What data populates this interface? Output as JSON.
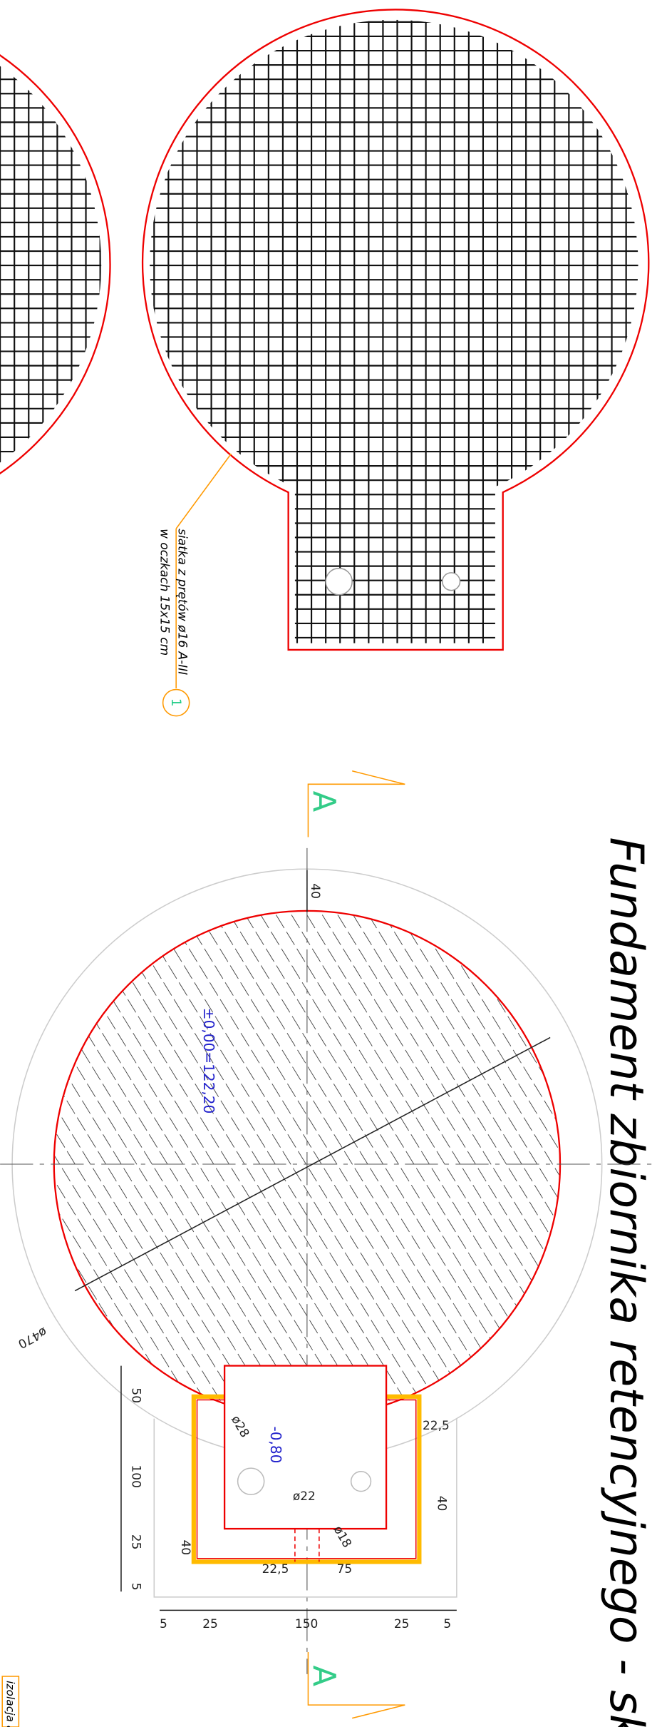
{
  "title": "Fundament zbiornika retencyjnego - skal",
  "mesh_note": {
    "line1": "siatka z prętów ø16 A-III",
    "line2": "w oczkach 15x15 cm",
    "marker": "1"
  },
  "section_marks": [
    "A",
    "A"
  ],
  "levels": [
    "±0,00=122,20",
    "-0,80"
  ],
  "diameters": [
    "ø470",
    "ø28",
    "ø22",
    "ø18"
  ],
  "dimensions": {
    "top_gap": "40",
    "left": [
      "50",
      "100",
      "25",
      "5"
    ],
    "pit": [
      "22,5",
      "40",
      "40",
      "22,5",
      "75"
    ],
    "bottom": [
      "5",
      "25",
      "150",
      "25",
      "5"
    ]
  },
  "insulation_label": "izolacja asfaltowo"
}
